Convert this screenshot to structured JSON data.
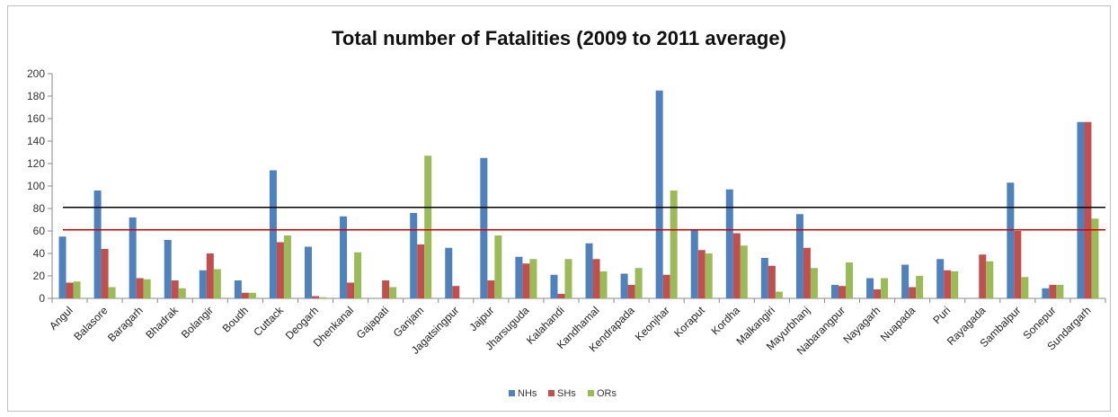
{
  "chart_data": {
    "type": "bar",
    "title": "Total number of Fatalities (2009 to 2011 average)",
    "xlabel": "",
    "ylabel": "",
    "ylim": [
      0,
      200
    ],
    "ytick_step": 20,
    "grid": false,
    "legend_position": "bottom",
    "categories": [
      "Angul",
      "Balasore",
      "Baragarh",
      "Bhadrak",
      "Bolangir",
      "Boudh",
      "Cuttack",
      "Deogarh",
      "Dhenkanal",
      "Gajapati",
      "Ganjam",
      "Jagatsingpur",
      "Jajpur",
      "Jharsuguda",
      "Kalahandi",
      "Kandhamal",
      "Kendrapada",
      "Keonjhar",
      "Koraput",
      "Kordha",
      "Malkangiri",
      "Mayurbhanj",
      "Nabarangpur",
      "Nayagarh",
      "Nuapada",
      "Puri",
      "Rayagada",
      "Sambalpur",
      "Sonepur",
      "Sundargarh"
    ],
    "series": [
      {
        "name": "NHs",
        "color": "#4f81bd",
        "values": [
          55,
          96,
          72,
          52,
          25,
          16,
          114,
          46,
          73,
          0,
          76,
          45,
          125,
          37,
          21,
          49,
          22,
          185,
          61,
          97,
          36,
          75,
          12,
          18,
          30,
          35,
          0,
          103,
          9,
          157
        ]
      },
      {
        "name": "SHs",
        "color": "#c0504d",
        "values": [
          14,
          44,
          18,
          16,
          40,
          5,
          50,
          2,
          14,
          16,
          48,
          11,
          16,
          31,
          4,
          35,
          12,
          21,
          43,
          58,
          29,
          45,
          11,
          8,
          10,
          25,
          39,
          60,
          12,
          157
        ]
      },
      {
        "name": "ORs",
        "color": "#9bbb59",
        "values": [
          15,
          10,
          17,
          9,
          26,
          5,
          56,
          1,
          41,
          10,
          127,
          0,
          56,
          35,
          35,
          24,
          27,
          96,
          40,
          47,
          6,
          27,
          32,
          18,
          20,
          24,
          33,
          19,
          12,
          71
        ]
      }
    ],
    "reference_lines": [
      {
        "value": 81,
        "color": "#000000"
      },
      {
        "value": 61,
        "color": "#cc0000"
      }
    ]
  }
}
